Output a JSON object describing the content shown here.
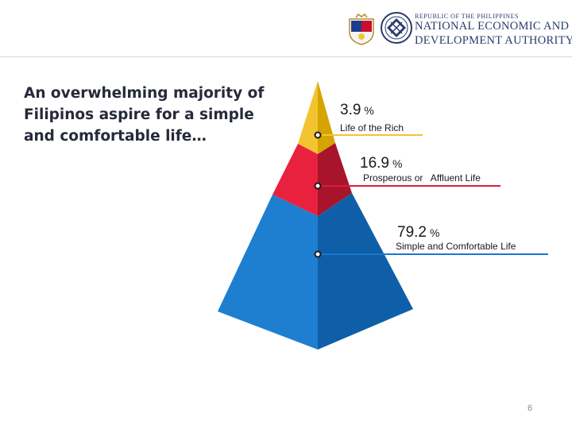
{
  "header": {
    "agency_small": "REPUBLIC OF THE PHILIPPINES",
    "agency_line1": "NATIONAL ECONOMIC AND",
    "agency_line2": "DEVELOPMENT AUTHORITY"
  },
  "headline": "An overwhelming majority of Filipinos aspire for a simple and comfortable life…",
  "colors": {
    "gold": "#f4c430",
    "red": "#d81f3b",
    "blue": "#1a78c9",
    "navy": "#2a3b6b"
  },
  "chart_data": {
    "type": "pyramid",
    "unit": "%",
    "series": [
      {
        "value": 3.9,
        "label": "Life of the Rich",
        "color": "#f4c430"
      },
      {
        "value": 16.9,
        "label": "Prosperous or   Affluent Life",
        "color": "#d81f3b"
      },
      {
        "value": 79.2,
        "label": "Simple and Comfortable Life",
        "color": "#1a78c9"
      }
    ]
  },
  "page_number": "6"
}
